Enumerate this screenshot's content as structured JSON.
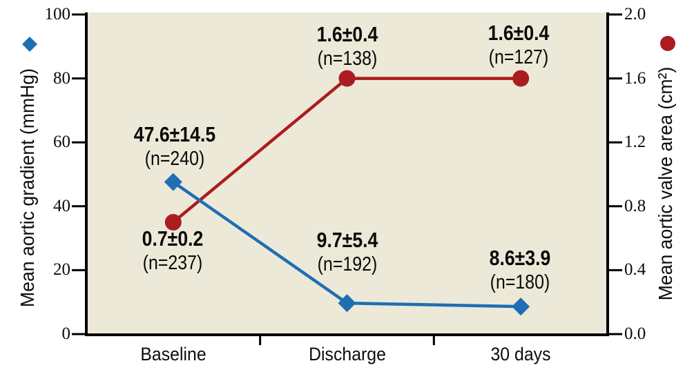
{
  "figure": {
    "background": "#ffffff",
    "plot_background": "#ece9d8",
    "axis_color": "#000000"
  },
  "chart_data": {
    "type": "line",
    "categories": [
      "Baseline",
      "Discharge",
      "30 days"
    ],
    "grid": false,
    "legend_position": "axis-titles-outside",
    "left_axis": {
      "label": "Mean aortic gradient (mmHg)",
      "range": [
        0,
        100
      ],
      "ticks": [
        "0",
        "20",
        "40",
        "60",
        "80",
        "100"
      ]
    },
    "right_axis": {
      "label": "Mean aortic valve area (cm²)",
      "range": [
        0,
        2
      ],
      "ticks": [
        "0.0",
        "0.4",
        "0.8",
        "1.2",
        "1.6",
        "2.0"
      ]
    },
    "series": [
      {
        "name": "Mean aortic gradient (mmHg)",
        "axis": "left",
        "marker": "diamond",
        "color": "#1e6eb4",
        "values": [
          47.6,
          9.7,
          8.6
        ],
        "annotations": [
          {
            "value": "47.6±14.5",
            "n": "(n=240)"
          },
          {
            "value": "9.7±5.4",
            "n": "(n=192)"
          },
          {
            "value": "8.6±3.9",
            "n": "(n=180)"
          }
        ]
      },
      {
        "name": "Mean aortic valve area (cm²)",
        "axis": "right",
        "marker": "circle",
        "color": "#ab1c20",
        "values": [
          0.7,
          1.6,
          1.6
        ],
        "annotations": [
          {
            "value": "0.7±0.2",
            "n": "(n=237)"
          },
          {
            "value": "1.6±0.4",
            "n": "(n=138)"
          },
          {
            "value": "1.6±0.4",
            "n": "(n=127)"
          }
        ]
      }
    ]
  }
}
